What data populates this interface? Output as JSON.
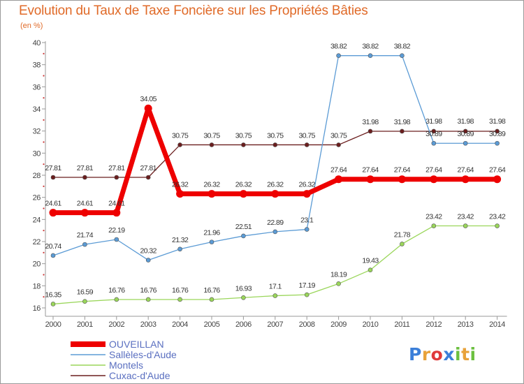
{
  "chart_data": {
    "type": "line",
    "title": "Evolution du Taux de Taxe Foncière sur les Propriétés Bâties",
    "ylabel": "(en %)",
    "xlabel": "",
    "categories": [
      "2000",
      "2001",
      "2002",
      "2003",
      "2004",
      "2005",
      "2006",
      "2007",
      "2008",
      "2009",
      "2010",
      "2011",
      "2012",
      "2013",
      "2014"
    ],
    "ylim": [
      16,
      40
    ],
    "yticks": [
      16,
      18,
      20,
      22,
      24,
      26,
      28,
      30,
      32,
      34,
      36,
      38,
      40
    ],
    "series": [
      {
        "name": "OUVEILLAN",
        "color": "#ee0000",
        "values": [
          24.61,
          24.61,
          24.61,
          34.05,
          26.32,
          26.32,
          26.32,
          26.32,
          26.32,
          27.64,
          27.64,
          27.64,
          27.64,
          27.64,
          27.64
        ],
        "labels": [
          "24.61",
          "24.61",
          "24.61",
          "34.05",
          "26.32",
          "26.32",
          "26.32",
          "26.32",
          "26.32",
          "27.64",
          "27.64",
          "27.64",
          "27.64",
          "27.64",
          "27.64"
        ]
      },
      {
        "name": "Sallèles-d'Aude",
        "color": "#5b9bd5",
        "values": [
          20.74,
          21.74,
          22.19,
          20.32,
          21.32,
          21.96,
          22.51,
          22.89,
          23.1,
          38.82,
          38.82,
          38.82,
          30.89,
          30.89,
          30.89
        ],
        "labels": [
          "20.74",
          "21.74",
          "22.19",
          "20.32",
          "21.32",
          "21.96",
          "22.51",
          "22.89",
          "23.1",
          "38.82",
          "38.82",
          "38.82",
          "30.89",
          "30.89",
          "30.89"
        ]
      },
      {
        "name": "Montels",
        "color": "#9ad65a",
        "values": [
          16.35,
          16.59,
          16.76,
          16.76,
          16.76,
          16.76,
          16.93,
          17.1,
          17.19,
          18.19,
          19.43,
          21.78,
          23.42,
          23.42,
          23.42
        ],
        "labels": [
          "16.35",
          "16.59",
          "16.76",
          "16.76",
          "16.76",
          "16.76",
          "16.93",
          "17.1",
          "17.19",
          "18.19",
          "19.43",
          "21.78",
          "23.42",
          "23.42",
          "23.42"
        ]
      },
      {
        "name": "Cuxac-d'Aude",
        "color": "#6b1e1e",
        "values": [
          27.81,
          27.81,
          27.81,
          27.81,
          30.75,
          30.75,
          30.75,
          30.75,
          30.75,
          30.75,
          31.98,
          31.98,
          31.98,
          31.98,
          31.98
        ],
        "labels": [
          "27.81",
          "27.81",
          "27.81",
          "27.81",
          "30.75",
          "30.75",
          "30.75",
          "30.75",
          "30.75",
          "30.75",
          "31.98",
          "31.98",
          "31.98",
          "31.98",
          "31.98"
        ]
      }
    ],
    "legend_position": "bottom-left",
    "grid": false
  },
  "logo": {
    "letters": [
      "P",
      "r",
      "o",
      "x",
      "i",
      "t",
      "i"
    ],
    "colors": [
      "#3b7fd9",
      "#e8a23a",
      "#e03a3a",
      "#3b7fd9",
      "#6cc040",
      "#e8a23a",
      "#6cc040"
    ]
  }
}
